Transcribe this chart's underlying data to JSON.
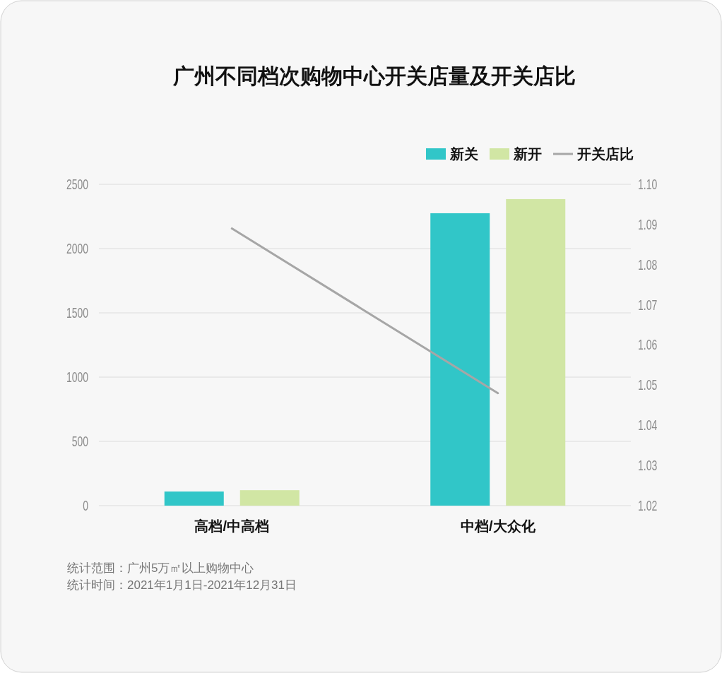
{
  "chart_data": {
    "type": "bar",
    "title": "广州不同档次购物中心开关店量及开关店比",
    "categories": [
      "高档/中高档",
      "中档/大众化"
    ],
    "series": [
      {
        "name": "新关",
        "color": "#31c6c8",
        "values": [
          110,
          2275
        ]
      },
      {
        "name": "新开",
        "color": "#d1e6a4",
        "values": [
          120,
          2385
        ]
      },
      {
        "name": "开关店比",
        "type": "line",
        "axis": "y2",
        "color": "#a6a6a6",
        "values": [
          1.089,
          1.048
        ]
      }
    ],
    "ylim": [
      0,
      2500
    ],
    "yticks": [
      0,
      500,
      1000,
      1500,
      2000,
      2500
    ],
    "y2lim": [
      1.02,
      1.1
    ],
    "y2ticks": [
      {
        "value": 1.02,
        "label": "1.02"
      },
      {
        "value": 1.03,
        "label": "1.03"
      },
      {
        "value": 1.04,
        "label": "1.04"
      },
      {
        "value": 1.05,
        "label": "1.05"
      },
      {
        "value": 1.06,
        "label": "1.06"
      },
      {
        "value": 1.07,
        "label": "1.07"
      },
      {
        "value": 1.08,
        "label": "1.08"
      },
      {
        "value": 1.09,
        "label": "1.09"
      },
      {
        "value": 1.1,
        "label": "1.10"
      }
    ],
    "grid": "y",
    "legend": "top right",
    "annotations": [
      "统计范围：广州5万㎡以上购物中心",
      "统计时间：2021年1月1日-2021年12月31日"
    ]
  }
}
